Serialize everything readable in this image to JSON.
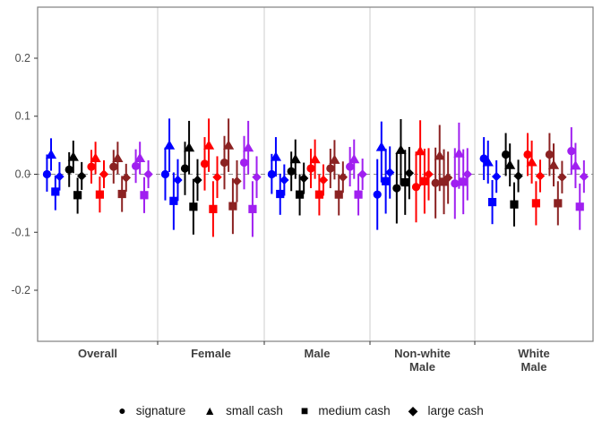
{
  "chart_data": {
    "type": "scatter",
    "subtype": "pointrange-coefficient-plot",
    "title": "",
    "xlabel": "",
    "ylabel": "",
    "grid": "off",
    "zero_reference_line": 0.0,
    "ylim": [
      -0.288,
      0.288
    ],
    "y_ticks": [
      {
        "label": "0.2",
        "value": 0.2
      },
      {
        "label": "0.1",
        "value": 0.1
      },
      {
        "label": "0.0",
        "value": 0.0
      },
      {
        "label": "-0.1",
        "value": -0.1
      },
      {
        "label": "-0.2",
        "value": -0.2
      }
    ],
    "markers": [
      {
        "key": "signature",
        "label": "signature",
        "shape": "circle",
        "glyph": "●"
      },
      {
        "key": "small_cash",
        "label": "small cash",
        "shape": "triangle",
        "glyph": "▲"
      },
      {
        "key": "medium_cash",
        "label": "medium cash",
        "shape": "square",
        "glyph": "■"
      },
      {
        "key": "large_cash",
        "label": "large cash",
        "shape": "diamond",
        "glyph": "◆"
      }
    ],
    "palette": [
      "#0000FF",
      "#000000",
      "#FF0000",
      "#8B2222",
      "#A020F0"
    ],
    "palette_names": [
      "blue",
      "black",
      "red",
      "dark-red",
      "purple"
    ],
    "point_format": "[estimate, ci_low, ci_high] per marker in markers[] order",
    "facets": [
      {
        "name": "Overall",
        "label_lines": [
          "Overall"
        ],
        "groups": [
          [
            [
              0.0,
              -0.03,
              0.034
            ],
            [
              0.034,
              0.006,
              0.062
            ],
            [
              -0.03,
              -0.062,
              -0.002
            ],
            [
              -0.004,
              -0.028,
              0.021
            ]
          ],
          [
            [
              0.008,
              -0.022,
              0.038
            ],
            [
              0.03,
              0.002,
              0.058
            ],
            [
              -0.036,
              -0.068,
              -0.006
            ],
            [
              -0.003,
              -0.027,
              0.021
            ]
          ],
          [
            [
              0.013,
              -0.016,
              0.042
            ],
            [
              0.028,
              0.0,
              0.056
            ],
            [
              -0.035,
              -0.066,
              -0.004
            ],
            [
              0.0,
              -0.024,
              0.024
            ]
          ],
          [
            [
              0.013,
              -0.016,
              0.042
            ],
            [
              0.028,
              0.0,
              0.056
            ],
            [
              -0.034,
              -0.065,
              -0.003
            ],
            [
              -0.006,
              -0.03,
              0.018
            ]
          ],
          [
            [
              0.014,
              -0.015,
              0.043
            ],
            [
              0.028,
              0.0,
              0.056
            ],
            [
              -0.036,
              -0.067,
              -0.005
            ],
            [
              0.0,
              -0.024,
              0.024
            ]
          ]
        ]
      },
      {
        "name": "Female",
        "label_lines": [
          "Female"
        ],
        "groups": [
          [
            [
              0.0,
              -0.045,
              0.046
            ],
            [
              0.05,
              0.004,
              0.096
            ],
            [
              -0.046,
              -0.096,
              0.003
            ],
            [
              -0.01,
              -0.046,
              0.026
            ]
          ],
          [
            [
              0.01,
              -0.036,
              0.056
            ],
            [
              0.046,
              0.0,
              0.092
            ],
            [
              -0.056,
              -0.104,
              -0.008
            ],
            [
              -0.01,
              -0.046,
              0.026
            ]
          ],
          [
            [
              0.018,
              -0.028,
              0.064
            ],
            [
              0.05,
              0.004,
              0.096
            ],
            [
              -0.06,
              -0.108,
              -0.012
            ],
            [
              -0.005,
              -0.041,
              0.031
            ]
          ],
          [
            [
              0.02,
              -0.026,
              0.066
            ],
            [
              0.05,
              0.004,
              0.096
            ],
            [
              -0.055,
              -0.103,
              -0.007
            ],
            [
              -0.012,
              -0.048,
              0.024
            ]
          ],
          [
            [
              0.02,
              -0.026,
              0.066
            ],
            [
              0.046,
              0.0,
              0.092
            ],
            [
              -0.06,
              -0.108,
              -0.012
            ],
            [
              -0.005,
              -0.041,
              0.031
            ]
          ]
        ]
      },
      {
        "name": "Male",
        "label_lines": [
          "Male"
        ],
        "groups": [
          [
            [
              0.0,
              -0.034,
              0.035
            ],
            [
              0.03,
              -0.004,
              0.064
            ],
            [
              -0.034,
              -0.07,
              0.001
            ],
            [
              -0.01,
              -0.037,
              0.017
            ]
          ],
          [
            [
              0.005,
              -0.029,
              0.039
            ],
            [
              0.026,
              -0.008,
              0.06
            ],
            [
              -0.035,
              -0.071,
              0.0
            ],
            [
              -0.007,
              -0.034,
              0.02
            ]
          ],
          [
            [
              0.01,
              -0.024,
              0.044
            ],
            [
              0.026,
              -0.008,
              0.06
            ],
            [
              -0.035,
              -0.071,
              0.0
            ],
            [
              -0.01,
              -0.037,
              0.017
            ]
          ],
          [
            [
              0.01,
              -0.024,
              0.044
            ],
            [
              0.025,
              -0.009,
              0.059
            ],
            [
              -0.035,
              -0.071,
              0.0
            ],
            [
              -0.005,
              -0.032,
              0.022
            ]
          ],
          [
            [
              0.013,
              -0.021,
              0.047
            ],
            [
              0.026,
              -0.008,
              0.06
            ],
            [
              -0.035,
              -0.071,
              0.0
            ],
            [
              0.0,
              -0.027,
              0.027
            ]
          ]
        ]
      },
      {
        "name": "Non-white Male",
        "label_lines": [
          "Non-white",
          "Male"
        ],
        "groups": [
          [
            [
              -0.035,
              -0.096,
              0.026
            ],
            [
              0.047,
              -0.014,
              0.091
            ],
            [
              -0.012,
              -0.068,
              0.044
            ],
            [
              0.003,
              -0.042,
              0.048
            ]
          ],
          [
            [
              -0.024,
              -0.085,
              0.037
            ],
            [
              0.042,
              -0.019,
              0.095
            ],
            [
              -0.014,
              -0.07,
              0.042
            ],
            [
              0.002,
              -0.043,
              0.047
            ]
          ],
          [
            [
              -0.022,
              -0.083,
              0.039
            ],
            [
              0.04,
              -0.021,
              0.093
            ],
            [
              -0.012,
              -0.068,
              0.044
            ],
            [
              0.0,
              -0.045,
              0.045
            ]
          ],
          [
            [
              -0.015,
              -0.076,
              0.046
            ],
            [
              0.032,
              -0.029,
              0.085
            ],
            [
              -0.013,
              -0.069,
              0.043
            ],
            [
              -0.006,
              -0.051,
              0.039
            ]
          ],
          [
            [
              -0.016,
              -0.077,
              0.045
            ],
            [
              0.036,
              -0.025,
              0.089
            ],
            [
              -0.013,
              -0.069,
              0.043
            ],
            [
              0.0,
              -0.045,
              0.045
            ]
          ]
        ]
      },
      {
        "name": "White Male",
        "label_lines": [
          "White",
          "Male"
        ],
        "groups": [
          [
            [
              0.027,
              -0.01,
              0.064
            ],
            [
              0.021,
              -0.016,
              0.058
            ],
            [
              -0.048,
              -0.086,
              -0.01
            ],
            [
              -0.004,
              -0.032,
              0.024
            ]
          ],
          [
            [
              0.034,
              -0.003,
              0.071
            ],
            [
              0.016,
              -0.021,
              0.053
            ],
            [
              -0.052,
              -0.09,
              -0.014
            ],
            [
              -0.003,
              -0.031,
              0.025
            ]
          ],
          [
            [
              0.034,
              -0.003,
              0.071
            ],
            [
              0.021,
              -0.016,
              0.058
            ],
            [
              -0.05,
              -0.088,
              -0.012
            ],
            [
              -0.003,
              -0.031,
              0.025
            ]
          ],
          [
            [
              0.034,
              -0.003,
              0.071
            ],
            [
              0.016,
              -0.021,
              0.053
            ],
            [
              -0.05,
              -0.088,
              -0.012
            ],
            [
              -0.005,
              -0.033,
              0.023
            ]
          ],
          [
            [
              0.04,
              -0.001,
              0.081
            ],
            [
              0.015,
              -0.024,
              0.054
            ],
            [
              -0.056,
              -0.096,
              -0.016
            ],
            [
              -0.004,
              -0.032,
              0.024
            ]
          ]
        ]
      }
    ],
    "legend_position": "bottom",
    "style_colors": {
      "panel_border": "#808080",
      "facet_separator": "#D9D9D9",
      "zero_line": "#8C8C8C",
      "axis_tick": "#333333",
      "axis_text": "#4D4D4D",
      "facet_label_text": "#404040"
    }
  },
  "legend": {
    "items": [
      {
        "label": "signature",
        "glyph": "●"
      },
      {
        "label": "small cash",
        "glyph": "▲"
      },
      {
        "label": "medium cash",
        "glyph": "■"
      },
      {
        "label": "large cash",
        "glyph": "◆"
      }
    ]
  }
}
